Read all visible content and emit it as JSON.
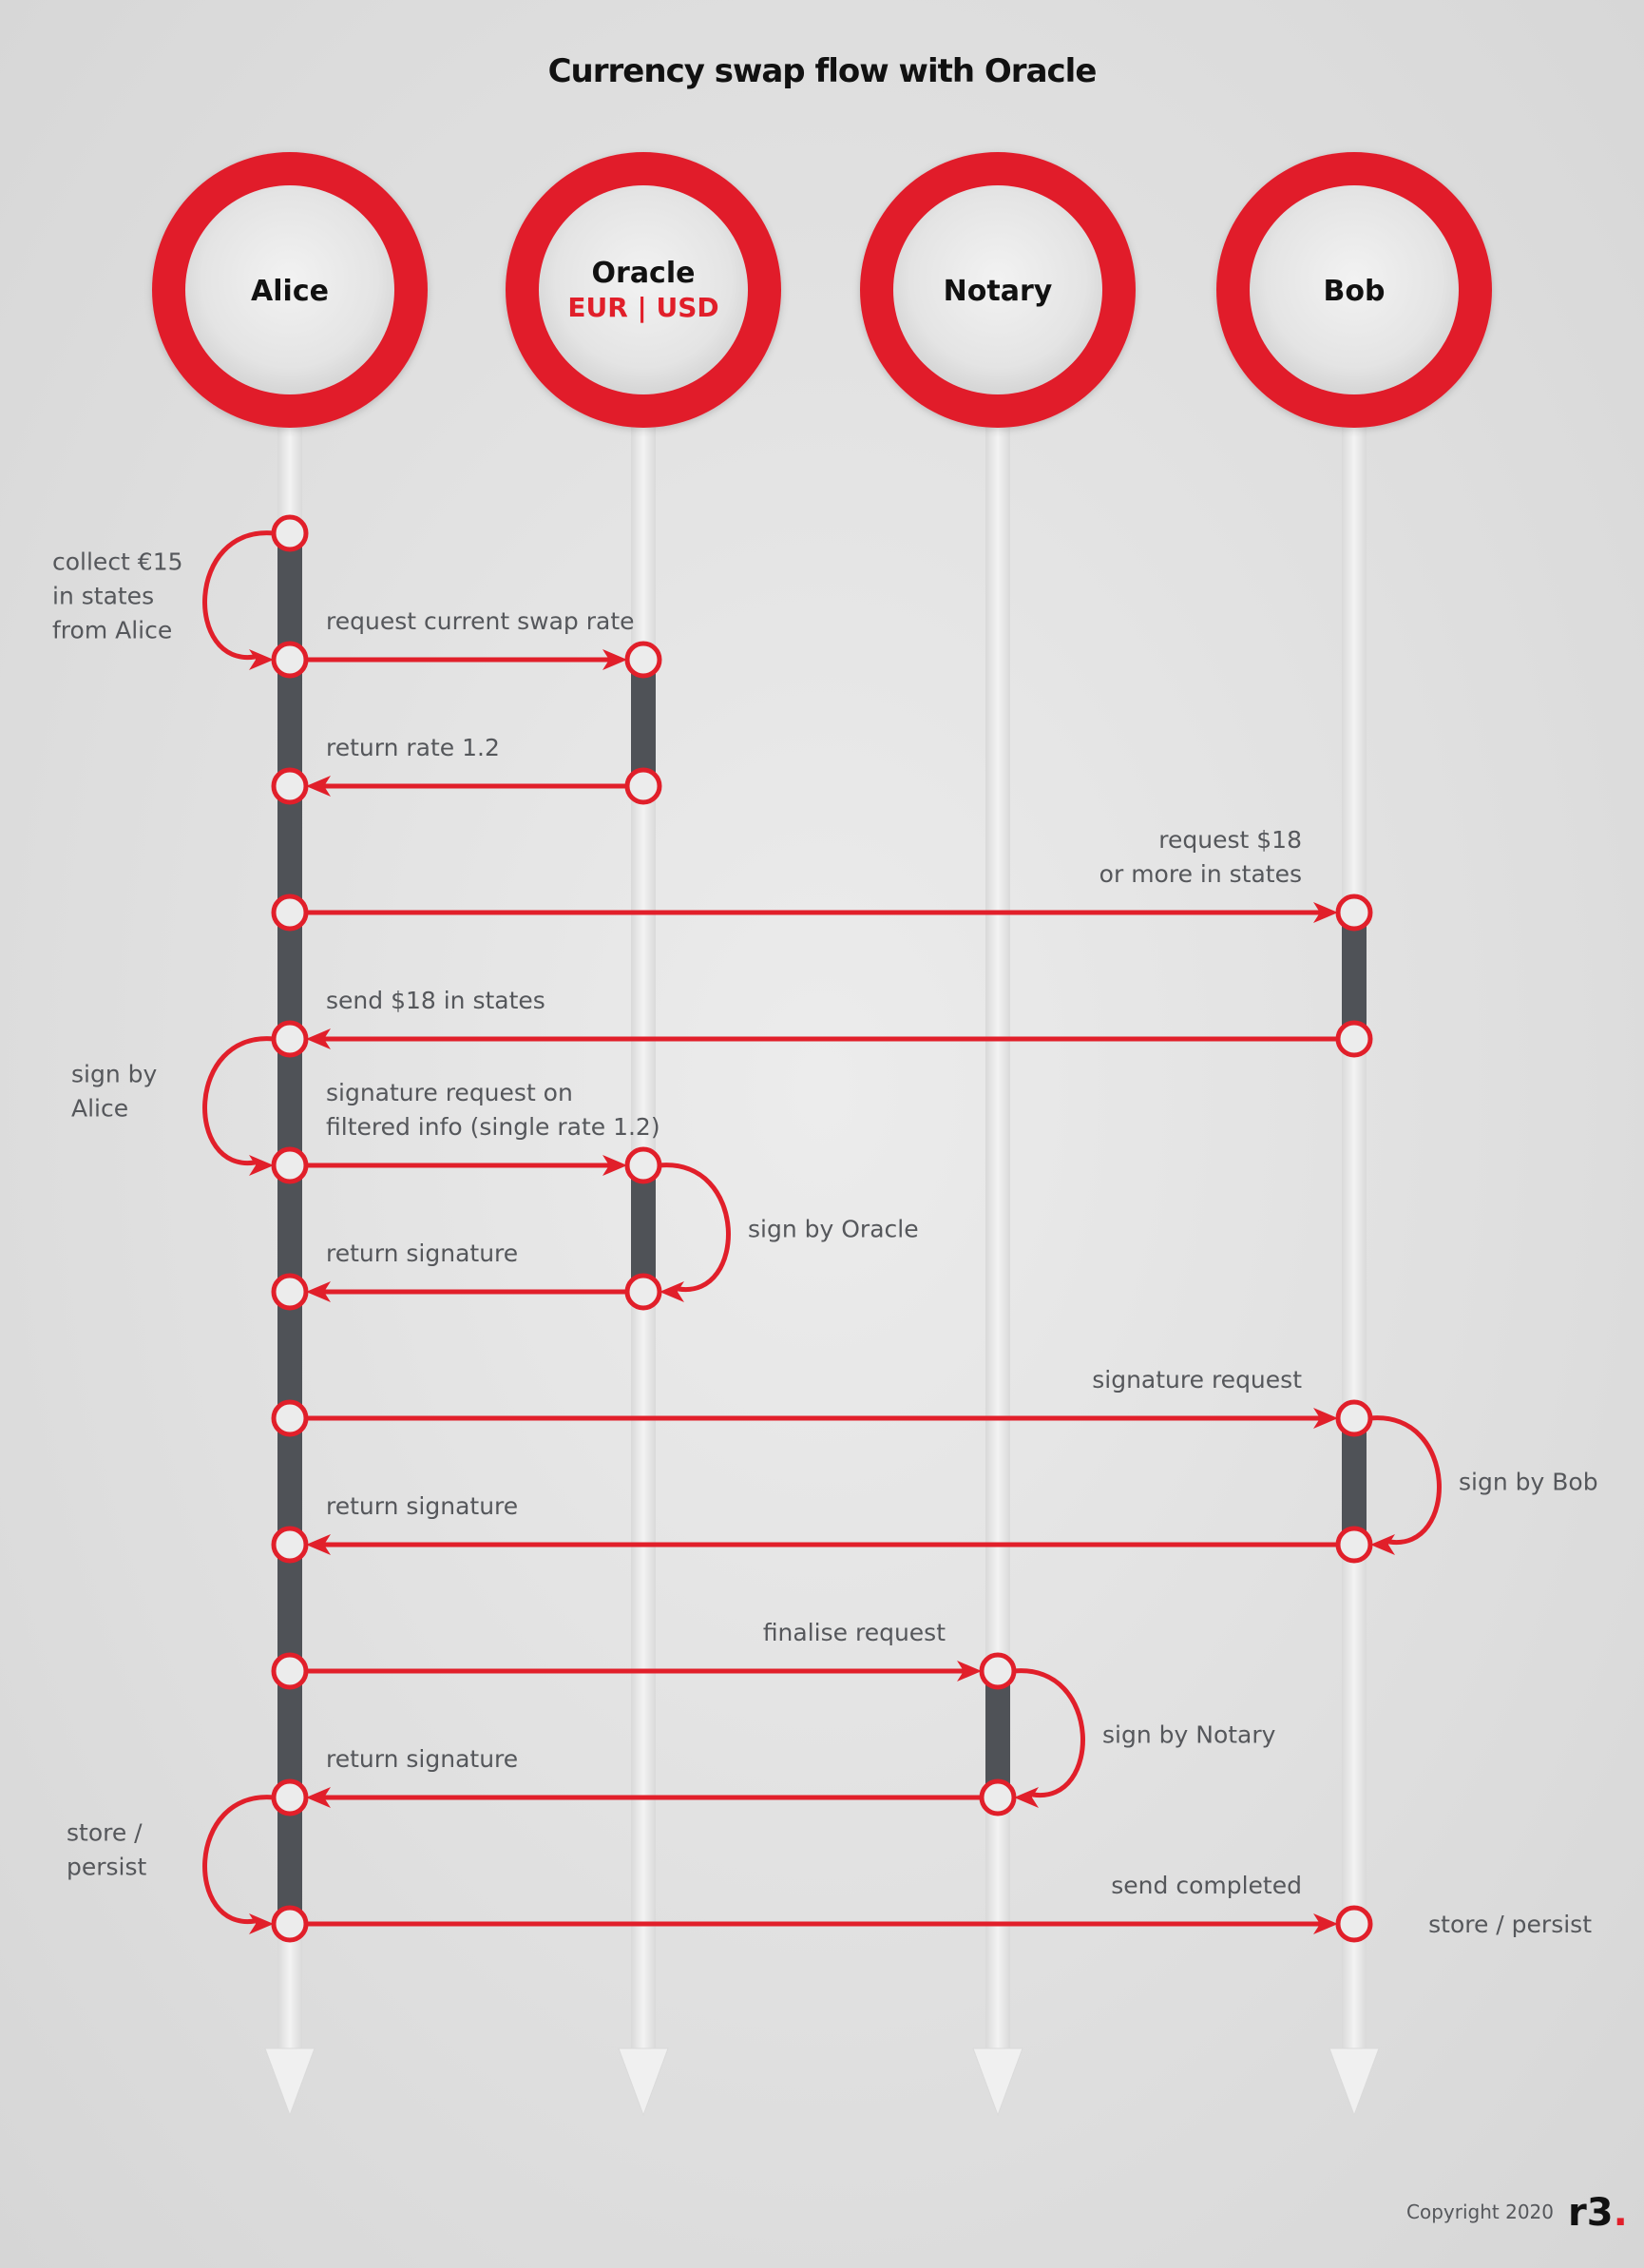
{
  "title": "Currency swap flow with Oracle",
  "colors": {
    "accent": "#e11f2a",
    "text": "#55575b",
    "activation": "#4f5257",
    "lifeline": "#ebebeb"
  },
  "actors": [
    {
      "id": "alice",
      "name": "Alice",
      "subtitle": ""
    },
    {
      "id": "oracle",
      "name": "Oracle",
      "subtitle": "EUR | USD"
    },
    {
      "id": "notary",
      "name": "Notary",
      "subtitle": ""
    },
    {
      "id": "bob",
      "name": "Bob",
      "subtitle": ""
    }
  ],
  "activations": [
    {
      "actor": "alice",
      "from": 1,
      "to": 12
    },
    {
      "actor": "oracle",
      "from": 2,
      "to": 3
    },
    {
      "actor": "oracle",
      "from": 6,
      "to": 7
    },
    {
      "actor": "bob",
      "from": 4,
      "to": 5
    },
    {
      "actor": "bob",
      "from": 8,
      "to": 9
    },
    {
      "actor": "notary",
      "from": 10,
      "to": 11
    }
  ],
  "messages": [
    {
      "from": "alice",
      "to": "oracle",
      "step": 2,
      "lines": [
        "request current swap rate"
      ],
      "align": "left"
    },
    {
      "from": "oracle",
      "to": "alice",
      "step": 3,
      "lines": [
        "return rate 1.2"
      ],
      "align": "left"
    },
    {
      "from": "alice",
      "to": "bob",
      "step": 4,
      "lines": [
        "request $18",
        "or more in states"
      ],
      "align": "right"
    },
    {
      "from": "bob",
      "to": "alice",
      "step": 5,
      "lines": [
        "send $18 in states"
      ],
      "align": "left"
    },
    {
      "from": "alice",
      "to": "oracle",
      "step": 6,
      "lines": [
        "signature request on",
        "filtered info (single rate 1.2)"
      ],
      "align": "left"
    },
    {
      "from": "oracle",
      "to": "alice",
      "step": 7,
      "lines": [
        "return signature"
      ],
      "align": "left"
    },
    {
      "from": "alice",
      "to": "bob",
      "step": 8,
      "lines": [
        "signature request"
      ],
      "align": "right"
    },
    {
      "from": "bob",
      "to": "alice",
      "step": 9,
      "lines": [
        "return signature"
      ],
      "align": "left"
    },
    {
      "from": "alice",
      "to": "notary",
      "step": 10,
      "lines": [
        "finalise request"
      ],
      "align": "right"
    },
    {
      "from": "notary",
      "to": "alice",
      "step": 11,
      "lines": [
        "return signature"
      ],
      "align": "left"
    },
    {
      "from": "alice",
      "to": "bob",
      "step": 12,
      "lines": [
        "send completed"
      ],
      "align": "right"
    }
  ],
  "self_loops": [
    {
      "actor": "alice",
      "from": 1,
      "to": 2,
      "side": "left",
      "lines": [
        "collect €15",
        "in states",
        "from Alice"
      ]
    },
    {
      "actor": "alice",
      "from": 5,
      "to": 6,
      "side": "left",
      "lines": [
        "sign by",
        "Alice"
      ]
    },
    {
      "actor": "oracle",
      "from": 6,
      "to": 7,
      "side": "right",
      "lines": [
        "sign by Oracle"
      ]
    },
    {
      "actor": "bob",
      "from": 8,
      "to": 9,
      "side": "right",
      "lines": [
        "sign by Bob"
      ]
    },
    {
      "actor": "notary",
      "from": 10,
      "to": 11,
      "side": "right",
      "lines": [
        "sign by Notary"
      ]
    },
    {
      "actor": "alice",
      "from": 11,
      "to": 12,
      "side": "left",
      "lines": [
        "store /",
        "persist"
      ]
    }
  ],
  "end_notes": [
    {
      "actor": "bob",
      "step": 12,
      "text": "store / persist"
    }
  ],
  "points": [
    {
      "actor": "alice",
      "step": 1
    },
    {
      "actor": "alice",
      "step": 2
    },
    {
      "actor": "alice",
      "step": 3
    },
    {
      "actor": "alice",
      "step": 4
    },
    {
      "actor": "alice",
      "step": 5
    },
    {
      "actor": "alice",
      "step": 6
    },
    {
      "actor": "alice",
      "step": 7
    },
    {
      "actor": "alice",
      "step": 8
    },
    {
      "actor": "alice",
      "step": 9
    },
    {
      "actor": "alice",
      "step": 10
    },
    {
      "actor": "alice",
      "step": 11
    },
    {
      "actor": "alice",
      "step": 12
    },
    {
      "actor": "oracle",
      "step": 2
    },
    {
      "actor": "oracle",
      "step": 3
    },
    {
      "actor": "oracle",
      "step": 6
    },
    {
      "actor": "oracle",
      "step": 7
    },
    {
      "actor": "bob",
      "step": 4
    },
    {
      "actor": "bob",
      "step": 5
    },
    {
      "actor": "bob",
      "step": 8
    },
    {
      "actor": "bob",
      "step": 9
    },
    {
      "actor": "bob",
      "step": 12
    },
    {
      "actor": "notary",
      "step": 10
    },
    {
      "actor": "notary",
      "step": 11
    }
  ],
  "footer": {
    "copyright": "Copyright 2020",
    "logo": "r3."
  }
}
